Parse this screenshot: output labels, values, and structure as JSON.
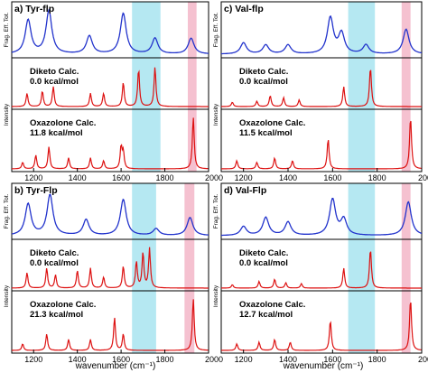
{
  "figure": {
    "x_axis_label": "wavenumber (cm⁻¹)",
    "ylabel_top": "Frag. Eff. Tot.",
    "ylabel_calc": "Intensity",
    "colors": {
      "experiment": "#2233cc",
      "calc": "#dd1111",
      "band_cyan": "#a8e4f0",
      "band_pink": "#f3b6c8",
      "axis": "#000000"
    },
    "x_ticks": [
      "1200",
      "1400",
      "1600",
      "1800",
      "2000"
    ]
  },
  "chart_data": [
    {
      "type": "line",
      "panel_label": "a) Tyr-flp",
      "xlim": [
        1100,
        2000
      ],
      "highlight_bands": [
        {
          "from": 1650,
          "to": 1780,
          "color": "cyan"
        },
        {
          "from": 1905,
          "to": 1945,
          "color": "pink"
        }
      ],
      "experiment": {
        "peaks": [
          [
            1175,
            0.75
          ],
          [
            1270,
            0.95
          ],
          [
            1455,
            0.4
          ],
          [
            1610,
            0.9
          ],
          [
            1755,
            0.35
          ],
          [
            1920,
            0.35
          ]
        ]
      },
      "calcs": [
        {
          "label": "Diketo Calc.",
          "energy": "0.0 kcal/mol",
          "peaks": [
            [
              1170,
              0.3
            ],
            [
              1240,
              0.35
            ],
            [
              1290,
              0.45
            ],
            [
              1460,
              0.3
            ],
            [
              1520,
              0.3
            ],
            [
              1610,
              0.55
            ],
            [
              1680,
              0.85
            ],
            [
              1755,
              0.9
            ]
          ]
        },
        {
          "label": "Oxazolone Calc.",
          "energy": "11.8 kcal/mol",
          "peaks": [
            [
              1150,
              0.12
            ],
            [
              1210,
              0.25
            ],
            [
              1270,
              0.4
            ],
            [
              1360,
              0.2
            ],
            [
              1460,
              0.2
            ],
            [
              1520,
              0.15
            ],
            [
              1600,
              0.4
            ],
            [
              1610,
              0.3
            ],
            [
              1930,
              0.95
            ]
          ]
        }
      ]
    },
    {
      "type": "line",
      "panel_label": "c) Val-flp",
      "xlim": [
        1100,
        2000
      ],
      "highlight_bands": [
        {
          "from": 1670,
          "to": 1790,
          "color": "cyan"
        },
        {
          "from": 1910,
          "to": 1950,
          "color": "pink"
        }
      ],
      "experiment": {
        "peaks": [
          [
            1200,
            0.25
          ],
          [
            1300,
            0.2
          ],
          [
            1400,
            0.2
          ],
          [
            1590,
            0.8
          ],
          [
            1640,
            0.45
          ],
          [
            1750,
            0.2
          ],
          [
            1930,
            0.55
          ]
        ]
      },
      "calcs": [
        {
          "label": "Diketo Calc.",
          "energy": "0.0 kcal/mol",
          "peaks": [
            [
              1150,
              0.1
            ],
            [
              1260,
              0.12
            ],
            [
              1320,
              0.25
            ],
            [
              1380,
              0.2
            ],
            [
              1450,
              0.15
            ],
            [
              1650,
              0.45
            ],
            [
              1770,
              0.9
            ]
          ]
        },
        {
          "label": "Oxazolone Calc.",
          "energy": "11.5 kcal/mol",
          "peaks": [
            [
              1170,
              0.15
            ],
            [
              1260,
              0.12
            ],
            [
              1340,
              0.2
            ],
            [
              1420,
              0.15
            ],
            [
              1580,
              0.55
            ],
            [
              1950,
              0.95
            ]
          ]
        }
      ]
    },
    {
      "type": "line",
      "panel_label": "b) Tyr-Flp",
      "xlim": [
        1100,
        2000
      ],
      "highlight_bands": [
        {
          "from": 1650,
          "to": 1760,
          "color": "cyan"
        },
        {
          "from": 1890,
          "to": 1935,
          "color": "pink"
        }
      ],
      "experiment": {
        "peaks": [
          [
            1175,
            0.7
          ],
          [
            1275,
            0.9
          ],
          [
            1440,
            0.35
          ],
          [
            1610,
            0.8
          ],
          [
            1760,
            0.15
          ],
          [
            1915,
            0.4
          ]
        ]
      },
      "calcs": [
        {
          "label": "Diketo Calc.",
          "energy": "0.0 kcal/mol",
          "peaks": [
            [
              1170,
              0.35
            ],
            [
              1260,
              0.45
            ],
            [
              1300,
              0.3
            ],
            [
              1400,
              0.4
            ],
            [
              1460,
              0.45
            ],
            [
              1520,
              0.25
            ],
            [
              1610,
              0.5
            ],
            [
              1670,
              0.6
            ],
            [
              1700,
              0.8
            ],
            [
              1730,
              0.9
            ]
          ]
        },
        {
          "label": "Oxazolone Calc.",
          "energy": "21.3 kcal/mol",
          "peaks": [
            [
              1150,
              0.12
            ],
            [
              1260,
              0.3
            ],
            [
              1360,
              0.2
            ],
            [
              1460,
              0.2
            ],
            [
              1570,
              0.6
            ],
            [
              1610,
              0.3
            ],
            [
              1930,
              0.95
            ]
          ]
        }
      ]
    },
    {
      "type": "line",
      "panel_label": "d) Val-Flp",
      "xlim": [
        1100,
        2000
      ],
      "highlight_bands": [
        {
          "from": 1670,
          "to": 1790,
          "color": "cyan"
        },
        {
          "from": 1910,
          "to": 1950,
          "color": "pink"
        }
      ],
      "experiment": {
        "peaks": [
          [
            1200,
            0.2
          ],
          [
            1300,
            0.4
          ],
          [
            1400,
            0.3
          ],
          [
            1600,
            0.8
          ],
          [
            1650,
            0.35
          ],
          [
            1940,
            0.75
          ]
        ]
      },
      "calcs": [
        {
          "label": "Diketo Calc.",
          "energy": "0.0 kcal/mol",
          "peaks": [
            [
              1150,
              0.08
            ],
            [
              1270,
              0.15
            ],
            [
              1340,
              0.2
            ],
            [
              1390,
              0.12
            ],
            [
              1460,
              0.1
            ],
            [
              1650,
              0.45
            ],
            [
              1770,
              0.9
            ]
          ]
        },
        {
          "label": "Oxazolone Calc.",
          "energy": "12.7 kcal/mol",
          "peaks": [
            [
              1170,
              0.12
            ],
            [
              1270,
              0.15
            ],
            [
              1340,
              0.2
            ],
            [
              1410,
              0.15
            ],
            [
              1590,
              0.55
            ],
            [
              1950,
              0.95
            ]
          ]
        }
      ]
    }
  ]
}
